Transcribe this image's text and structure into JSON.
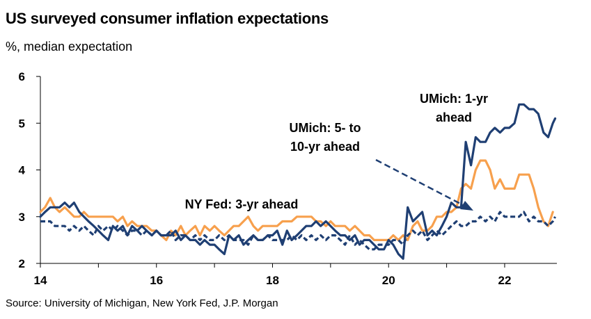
{
  "header": {
    "title": "US surveyed consumer inflation expectations",
    "subtitle": "%, median expectation"
  },
  "footer": {
    "source": "Source: University of Michigan, New York Fed, J.P. Morgan"
  },
  "colors": {
    "umich_1yr": "#1f3f73",
    "umich_5to10yr": "#1f3f73",
    "nyfed_3yr": "#f7a04d"
  },
  "chart_data": {
    "type": "line",
    "title": "US surveyed consumer inflation expectations",
    "ylabel": "%, median expectation",
    "xlim": [
      2014,
      2022.9
    ],
    "ylim": [
      2,
      6
    ],
    "x_ticks": [
      2014,
      2016,
      2018,
      2020,
      2022
    ],
    "x_tick_labels": [
      "14",
      "16",
      "18",
      "20",
      "22"
    ],
    "y_ticks": [
      2,
      3,
      4,
      5,
      6
    ],
    "y_tick_labels": [
      "2",
      "3",
      "4",
      "5",
      "6"
    ],
    "annotations": {
      "umich_1yr": [
        "UMich: 1-yr",
        "ahead"
      ],
      "umich_5to10yr": [
        "UMich: 5- to",
        "10-yr ahead"
      ],
      "nyfed_3yr": [
        "NY Fed: 3-yr ahead"
      ]
    },
    "series": [
      {
        "name": "UMich: 1-yr ahead",
        "style": "solid",
        "x": [
          2014.0,
          2014.1,
          2014.2,
          2014.3,
          2014.4,
          2014.5,
          2014.6,
          2014.7,
          2014.8,
          2014.9,
          2015.0,
          2015.1,
          2015.2,
          2015.3,
          2015.4,
          2015.5,
          2015.6,
          2015.7,
          2015.8,
          2015.9,
          2016.0,
          2016.1,
          2016.2,
          2016.3,
          2016.4,
          2016.5,
          2016.6,
          2016.7,
          2016.8,
          2016.9,
          2017.0,
          2017.1,
          2017.2,
          2017.3,
          2017.4,
          2017.5,
          2017.6,
          2017.7,
          2017.8,
          2017.9,
          2018.0,
          2018.1,
          2018.2,
          2018.3,
          2018.4,
          2018.5,
          2018.6,
          2018.7,
          2018.8,
          2018.9,
          2019.0,
          2019.1,
          2019.2,
          2019.3,
          2019.4,
          2019.5,
          2019.6,
          2019.7,
          2019.8,
          2019.9,
          2020.0,
          2020.1,
          2020.2,
          2020.3,
          2020.4,
          2020.5,
          2020.6,
          2020.7,
          2020.8,
          2020.9,
          2021.0,
          2021.1,
          2021.2,
          2021.3,
          2021.4,
          2021.5,
          2021.6,
          2021.7,
          2021.8,
          2021.9,
          2022.0,
          2022.1,
          2022.2,
          2022.3,
          2022.4,
          2022.5,
          2022.6,
          2022.7,
          2022.8,
          2022.85
        ],
        "values": [
          3.0,
          3.2,
          3.2,
          3.2,
          3.3,
          3.1,
          3.1,
          2.9,
          2.8,
          2.6,
          2.5,
          2.8,
          2.7,
          2.8,
          2.8,
          2.7,
          2.9,
          2.7,
          2.6,
          2.6,
          2.7,
          2.7,
          2.5,
          2.6,
          2.5,
          2.4,
          2.4,
          2.5,
          2.4,
          2.4,
          2.2,
          2.6,
          2.5,
          2.6,
          2.5,
          2.6,
          2.5,
          2.6,
          2.5,
          2.4,
          2.6,
          2.7,
          2.7,
          2.8,
          2.7,
          2.8,
          2.8,
          2.9,
          2.8,
          2.8,
          2.7,
          2.6,
          2.6,
          2.4,
          2.5,
          2.5,
          2.4,
          2.4,
          2.3,
          2.3,
          2.5,
          2.4,
          2.2,
          2.1,
          3.2,
          3.0,
          3.1,
          2.6,
          2.7,
          2.8,
          3.0,
          3.3,
          3.2,
          4.6,
          4.2,
          4.7,
          4.6,
          4.8,
          4.9,
          4.9,
          5.0,
          4.9,
          5.4,
          5.4,
          5.3,
          5.3,
          5.2,
          4.8,
          4.7,
          5.1
        ],
        "plot_x": [
          2014.0,
          2014.08,
          2014.17,
          2014.25,
          2014.33,
          2014.42,
          2014.5,
          2014.58,
          2014.67,
          2014.75,
          2014.83,
          2014.92,
          2015.0,
          2015.08,
          2015.17,
          2015.25,
          2015.33,
          2015.42,
          2015.5,
          2015.58,
          2015.67,
          2015.75,
          2015.83,
          2015.92,
          2016.0,
          2016.08,
          2016.17,
          2016.25,
          2016.33,
          2016.42,
          2016.5,
          2016.58,
          2016.67,
          2016.75,
          2016.83,
          2016.92,
          2017.0,
          2017.08,
          2017.17,
          2017.25,
          2017.33,
          2017.42,
          2017.5,
          2017.58,
          2017.67,
          2017.75,
          2017.83,
          2017.92,
          2018.0,
          2018.08,
          2018.17,
          2018.25,
          2018.33,
          2018.42,
          2018.5,
          2018.58,
          2018.67,
          2018.75,
          2018.83,
          2018.92,
          2019.0,
          2019.08,
          2019.17,
          2019.25,
          2019.33,
          2019.42,
          2019.5,
          2019.58,
          2019.67,
          2019.75,
          2019.83,
          2019.92,
          2020.0,
          2020.08,
          2020.17,
          2020.25,
          2020.33,
          2020.42,
          2020.5,
          2020.58,
          2020.67,
          2020.75,
          2020.83,
          2020.92,
          2021.0,
          2021.08,
          2021.17,
          2021.25,
          2021.33,
          2021.42,
          2021.5,
          2021.58,
          2021.67,
          2021.75,
          2021.83,
          2021.92,
          2022.0,
          2022.08,
          2022.17,
          2022.25,
          2022.33,
          2022.42,
          2022.5,
          2022.58,
          2022.67,
          2022.75,
          2022.83,
          2022.87
        ],
        "plot_y": [
          3.0,
          3.1,
          3.2,
          3.2,
          3.2,
          3.3,
          3.2,
          3.3,
          3.1,
          3.0,
          2.9,
          2.8,
          2.7,
          2.6,
          2.5,
          2.8,
          2.7,
          2.8,
          2.6,
          2.8,
          2.7,
          2.8,
          2.7,
          2.6,
          2.7,
          2.6,
          2.6,
          2.6,
          2.7,
          2.5,
          2.6,
          2.5,
          2.5,
          2.4,
          2.5,
          2.4,
          2.4,
          2.3,
          2.2,
          2.6,
          2.5,
          2.6,
          2.4,
          2.5,
          2.6,
          2.5,
          2.5,
          2.6,
          2.6,
          2.7,
          2.4,
          2.7,
          2.5,
          2.6,
          2.7,
          2.8,
          2.8,
          2.9,
          2.8,
          2.9,
          2.8,
          2.7,
          2.6,
          2.6,
          2.5,
          2.6,
          2.4,
          2.5,
          2.5,
          2.4,
          2.3,
          2.3,
          2.5,
          2.4,
          2.2,
          2.1,
          3.2,
          2.9,
          3.0,
          3.1,
          2.6,
          2.7,
          2.6,
          2.8,
          3.0,
          3.3,
          3.2,
          3.2,
          4.6,
          4.1,
          4.7,
          4.6,
          4.6,
          4.8,
          4.9,
          4.8,
          4.9,
          4.9,
          5.0,
          5.4,
          5.4,
          5.3,
          5.3,
          5.2,
          4.8,
          4.7,
          5.0,
          5.1
        ]
      },
      {
        "name": "UMich: 5- to 10-yr ahead",
        "style": "dashed",
        "plot_x": [
          2014.0,
          2014.08,
          2014.17,
          2014.25,
          2014.33,
          2014.42,
          2014.5,
          2014.58,
          2014.67,
          2014.75,
          2014.83,
          2014.92,
          2015.0,
          2015.08,
          2015.17,
          2015.25,
          2015.33,
          2015.42,
          2015.5,
          2015.58,
          2015.67,
          2015.75,
          2015.83,
          2015.92,
          2016.0,
          2016.08,
          2016.17,
          2016.25,
          2016.33,
          2016.42,
          2016.5,
          2016.58,
          2016.67,
          2016.75,
          2016.83,
          2016.92,
          2017.0,
          2017.08,
          2017.17,
          2017.25,
          2017.33,
          2017.42,
          2017.5,
          2017.58,
          2017.67,
          2017.75,
          2017.83,
          2017.92,
          2018.0,
          2018.08,
          2018.17,
          2018.25,
          2018.33,
          2018.42,
          2018.5,
          2018.58,
          2018.67,
          2018.75,
          2018.83,
          2018.92,
          2019.0,
          2019.08,
          2019.17,
          2019.25,
          2019.33,
          2019.42,
          2019.5,
          2019.58,
          2019.67,
          2019.75,
          2019.83,
          2019.92,
          2020.0,
          2020.08,
          2020.17,
          2020.25,
          2020.33,
          2020.42,
          2020.5,
          2020.58,
          2020.67,
          2020.75,
          2020.83,
          2020.92,
          2021.0,
          2021.08,
          2021.17,
          2021.25,
          2021.33,
          2021.42,
          2021.5,
          2021.58,
          2021.67,
          2021.75,
          2021.83,
          2021.92,
          2022.0,
          2022.08,
          2022.17,
          2022.25,
          2022.33,
          2022.42,
          2022.5,
          2022.58,
          2022.67,
          2022.75,
          2022.83,
          2022.87
        ],
        "plot_y": [
          2.9,
          2.9,
          2.9,
          2.8,
          2.8,
          2.8,
          2.7,
          2.8,
          2.7,
          2.8,
          2.7,
          2.6,
          2.8,
          2.7,
          2.8,
          2.7,
          2.8,
          2.7,
          2.6,
          2.7,
          2.7,
          2.6,
          2.7,
          2.6,
          2.7,
          2.6,
          2.6,
          2.7,
          2.5,
          2.6,
          2.6,
          2.5,
          2.6,
          2.5,
          2.6,
          2.5,
          2.5,
          2.6,
          2.5,
          2.6,
          2.5,
          2.5,
          2.5,
          2.4,
          2.6,
          2.5,
          2.5,
          2.6,
          2.5,
          2.5,
          2.5,
          2.5,
          2.6,
          2.5,
          2.6,
          2.5,
          2.6,
          2.5,
          2.6,
          2.5,
          2.6,
          2.6,
          2.5,
          2.4,
          2.6,
          2.4,
          2.5,
          2.4,
          2.3,
          2.3,
          2.4,
          2.4,
          2.4,
          2.5,
          2.5,
          2.4,
          2.6,
          2.7,
          2.6,
          2.7,
          2.5,
          2.6,
          2.7,
          2.6,
          2.7,
          2.8,
          2.9,
          2.8,
          2.8,
          2.9,
          2.9,
          3.0,
          2.9,
          3.0,
          2.9,
          3.1,
          3.0,
          3.0,
          3.0,
          3.0,
          3.1,
          2.9,
          3.0,
          2.9,
          2.9,
          2.8,
          2.9,
          3.0
        ]
      },
      {
        "name": "NY Fed: 3-yr ahead",
        "style": "solid",
        "plot_x": [
          2014.0,
          2014.08,
          2014.17,
          2014.25,
          2014.33,
          2014.42,
          2014.5,
          2014.58,
          2014.67,
          2014.75,
          2014.83,
          2014.92,
          2015.0,
          2015.08,
          2015.17,
          2015.25,
          2015.33,
          2015.42,
          2015.5,
          2015.58,
          2015.67,
          2015.75,
          2015.83,
          2015.92,
          2016.0,
          2016.08,
          2016.17,
          2016.25,
          2016.33,
          2016.42,
          2016.5,
          2016.58,
          2016.67,
          2016.75,
          2016.83,
          2016.92,
          2017.0,
          2017.08,
          2017.17,
          2017.25,
          2017.33,
          2017.42,
          2017.5,
          2017.58,
          2017.67,
          2017.75,
          2017.83,
          2017.92,
          2018.0,
          2018.08,
          2018.17,
          2018.25,
          2018.33,
          2018.42,
          2018.5,
          2018.58,
          2018.67,
          2018.75,
          2018.83,
          2018.92,
          2019.0,
          2019.08,
          2019.17,
          2019.25,
          2019.33,
          2019.42,
          2019.5,
          2019.58,
          2019.67,
          2019.75,
          2019.83,
          2019.92,
          2020.0,
          2020.08,
          2020.17,
          2020.25,
          2020.33,
          2020.42,
          2020.5,
          2020.58,
          2020.67,
          2020.75,
          2020.83,
          2020.92,
          2021.0,
          2021.08,
          2021.17,
          2021.25,
          2021.33,
          2021.42,
          2021.5,
          2021.58,
          2021.67,
          2021.75,
          2021.83,
          2021.92,
          2022.0,
          2022.08,
          2022.17,
          2022.25,
          2022.33,
          2022.42,
          2022.5,
          2022.58,
          2022.67,
          2022.75,
          2022.83
        ],
        "plot_y": [
          3.1,
          3.2,
          3.4,
          3.2,
          3.1,
          3.2,
          3.1,
          3.0,
          3.0,
          3.1,
          3.0,
          3.0,
          3.0,
          3.0,
          3.0,
          3.0,
          2.9,
          3.0,
          2.8,
          2.9,
          2.8,
          2.8,
          2.8,
          2.7,
          2.7,
          2.6,
          2.5,
          2.7,
          2.6,
          2.8,
          2.6,
          2.7,
          2.8,
          2.6,
          2.8,
          2.7,
          2.8,
          2.7,
          2.6,
          2.7,
          2.8,
          2.8,
          2.9,
          3.0,
          2.8,
          2.7,
          2.8,
          2.8,
          2.8,
          2.8,
          2.9,
          2.9,
          2.9,
          3.0,
          3.0,
          3.0,
          3.0,
          2.9,
          2.9,
          2.8,
          2.9,
          2.8,
          2.8,
          2.8,
          2.7,
          2.8,
          2.7,
          2.6,
          2.6,
          2.5,
          2.5,
          2.5,
          2.5,
          2.6,
          2.5,
          2.6,
          2.5,
          2.8,
          2.9,
          2.7,
          2.7,
          2.8,
          3.0,
          3.0,
          3.1,
          3.1,
          3.2,
          3.6,
          3.7,
          3.6,
          4.0,
          4.2,
          4.2,
          4.0,
          3.6,
          3.8,
          3.6,
          3.6,
          3.6,
          3.9,
          3.9,
          3.9,
          3.6,
          3.2,
          2.9,
          2.8,
          3.1
        ]
      }
    ]
  }
}
